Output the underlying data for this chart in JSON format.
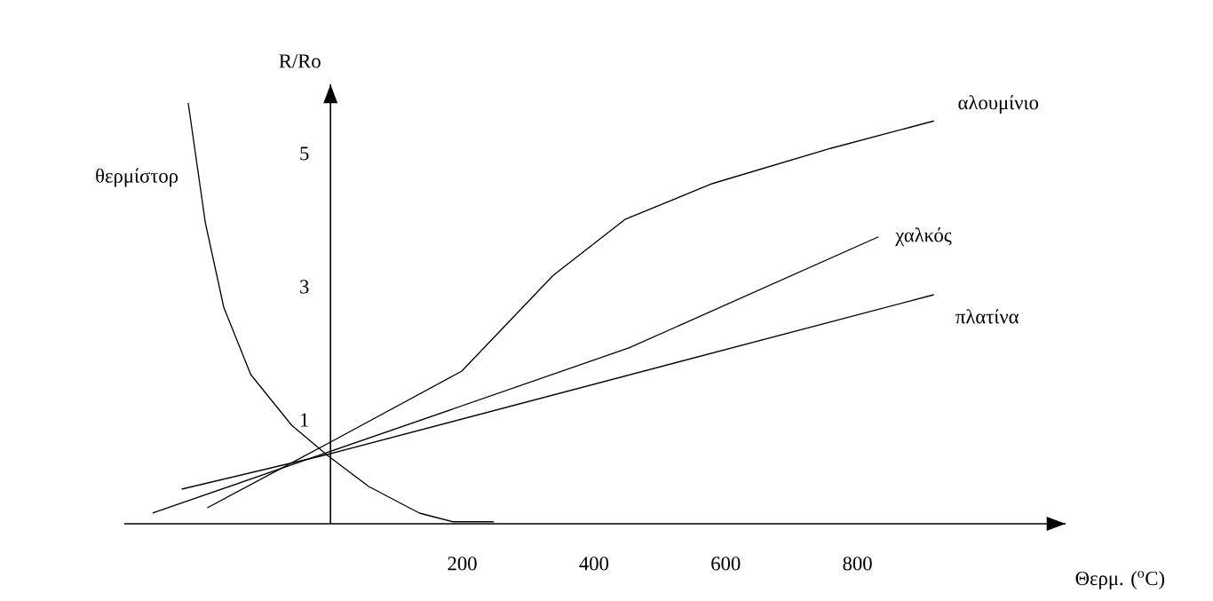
{
  "chart_data": {
    "type": "line",
    "xlabel": "Θερμ. ($^{o}$C)",
    "ylabel": "R/Ro",
    "xlim": [
      -313,
      1116
    ],
    "ylim": [
      -0.56,
      6.04
    ],
    "xticks": [
      200,
      400,
      600,
      800
    ],
    "yticks": [
      1,
      3,
      5
    ],
    "series": [
      {
        "name": "θερμίστορ",
        "color": "#000000",
        "x": [
          -216,
          -190,
          -162,
          -121,
          -59,
          -5,
          58,
          135,
          186,
          248
        ],
        "values": [
          5.76,
          3.96,
          2.69,
          1.68,
          0.92,
          0.47,
          0,
          -0.4,
          -0.53,
          -0.53
        ]
      },
      {
        "name": "αλουμίνιο",
        "color": "#000000",
        "x": [
          -187,
          -5,
          199,
          338,
          447,
          580,
          760,
          916
        ],
        "values": [
          -0.32,
          0.64,
          1.73,
          3.17,
          4.01,
          4.55,
          5.08,
          5.49
        ]
      },
      {
        "name": "χαλκός",
        "color": "#000000",
        "x": [
          -270,
          -5,
          453,
          832
        ],
        "values": [
          -0.4,
          0.51,
          2.08,
          3.75
        ]
      },
      {
        "name": "πλατίνα",
        "color": "#000000",
        "x": [
          -226,
          -5,
          916
        ],
        "values": [
          -0.04,
          0.48,
          2.88
        ]
      }
    ]
  }
}
